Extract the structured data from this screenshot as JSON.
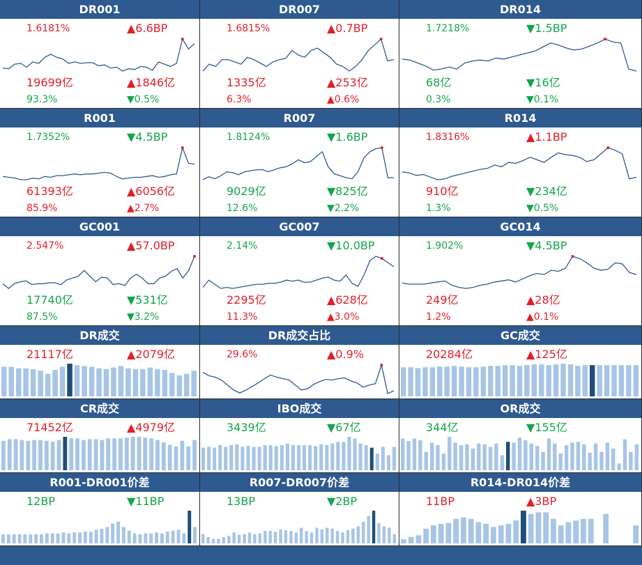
{
  "colors": {
    "header": "#2e5a8f",
    "up": "#e0202a",
    "down": "#12a64a",
    "line": "#2e5a8f",
    "bar": "#a7c5e6",
    "bar_highlight": "#1f4e79"
  },
  "cells": [
    {
      "title": "DR001",
      "type": "line",
      "top": {
        "l": {
          "text": "1.6181%",
          "dir": "up"
        },
        "r": {
          "text": "▲6.6BP",
          "dir": "up"
        }
      },
      "bottom": [
        {
          "l": {
            "text": "19699亿",
            "dir": "up"
          },
          "r": {
            "text": "▲1846亿",
            "dir": "up"
          }
        },
        {
          "l": {
            "text": "93.3%",
            "dir": "down"
          },
          "r": {
            "text": "▼0.5%",
            "dir": "down"
          }
        }
      ],
      "series": [
        10,
        9,
        15,
        16,
        11,
        18,
        16,
        24,
        28,
        24,
        22,
        16,
        18,
        16,
        17,
        17,
        13,
        14,
        10,
        11,
        6,
        9,
        8,
        12,
        11,
        7,
        18,
        15,
        12,
        16,
        48,
        35,
        42
      ],
      "marker": 30
    },
    {
      "title": "DR007",
      "type": "line",
      "top": {
        "l": {
          "text": "1.6815%",
          "dir": "up"
        },
        "r": {
          "text": "▲0.7BP",
          "dir": "up"
        }
      },
      "bottom": [
        {
          "l": {
            "text": "1335亿",
            "dir": "up"
          },
          "r": {
            "text": "▲253亿",
            "dir": "up"
          }
        },
        {
          "l": {
            "text": "6.3%",
            "dir": "up"
          },
          "r": {
            "text": "▲0.6%",
            "dir": "up"
          }
        }
      ],
      "series": [
        18,
        24,
        22,
        28,
        28,
        26,
        24,
        30,
        28,
        25,
        22,
        26,
        28,
        29,
        36,
        32,
        30,
        36,
        38,
        34,
        30,
        24,
        22,
        18,
        22,
        28,
        36,
        41,
        46,
        27,
        28
      ],
      "marker": 28
    },
    {
      "title": "DR014",
      "type": "line",
      "top": {
        "l": {
          "text": "1.7218%",
          "dir": "down"
        },
        "r": {
          "text": "▼1.5BP",
          "dir": "down"
        }
      },
      "bottom": [
        {
          "l": {
            "text": "68亿",
            "dir": "down"
          },
          "r": {
            "text": "▼16亿",
            "dir": "down"
          }
        },
        {
          "l": {
            "text": "0.3%",
            "dir": "down"
          },
          "r": {
            "text": "▼0.1%",
            "dir": "down"
          }
        }
      ],
      "series": [
        20,
        19,
        16,
        13,
        9,
        10,
        12,
        10,
        16,
        18,
        19,
        18,
        21,
        20,
        22,
        24,
        26,
        28,
        32,
        36,
        34,
        31,
        29,
        30,
        33,
        36,
        40,
        37,
        36,
        10,
        8
      ],
      "marker": 26
    },
    {
      "title": "R001",
      "type": "line",
      "top": {
        "l": {
          "text": "1.7352%",
          "dir": "down"
        },
        "r": {
          "text": "▼4.5BP",
          "dir": "down"
        }
      },
      "bottom": [
        {
          "l": {
            "text": "61393亿",
            "dir": "up"
          },
          "r": {
            "text": "▲6056亿",
            "dir": "up"
          }
        },
        {
          "l": {
            "text": "85.9%",
            "dir": "up"
          },
          "r": {
            "text": "▲2.7%",
            "dir": "up"
          }
        }
      ],
      "series": [
        10,
        9,
        8,
        6,
        6,
        8,
        7,
        10,
        9,
        11,
        11,
        12,
        13,
        12,
        13,
        13,
        14,
        15,
        14,
        10,
        7,
        8,
        9,
        9,
        10,
        11,
        9,
        10,
        12,
        13,
        45,
        26,
        25
      ],
      "marker": 30
    },
    {
      "title": "R007",
      "type": "line",
      "top": {
        "l": {
          "text": "1.8124%",
          "dir": "down"
        },
        "r": {
          "text": "▼1.6BP",
          "dir": "down"
        }
      },
      "bottom": [
        {
          "l": {
            "text": "9029亿",
            "dir": "down"
          },
          "r": {
            "text": "▼825亿",
            "dir": "down"
          }
        },
        {
          "l": {
            "text": "12.6%",
            "dir": "down"
          },
          "r": {
            "text": "▼2.2%",
            "dir": "down"
          }
        }
      ],
      "series": [
        12,
        15,
        13,
        16,
        20,
        19,
        17,
        20,
        21,
        22,
        22,
        20,
        22,
        24,
        25,
        28,
        32,
        29,
        30,
        35,
        40,
        25,
        18,
        16,
        14,
        13,
        20,
        34,
        40,
        43,
        44,
        14,
        14
      ],
      "marker": 30
    },
    {
      "title": "R014",
      "type": "line",
      "top": {
        "l": {
          "text": "1.8316%",
          "dir": "up"
        },
        "r": {
          "text": "▲1.1BP",
          "dir": "up"
        }
      },
      "bottom": [
        {
          "l": {
            "text": "910亿",
            "dir": "up"
          },
          "r": {
            "text": "▼234亿",
            "dir": "down"
          }
        },
        {
          "l": {
            "text": "1.3%",
            "dir": "down"
          },
          "r": {
            "text": "▼0.5%",
            "dir": "down"
          }
        }
      ],
      "series": [
        18,
        17,
        14,
        15,
        12,
        9,
        10,
        13,
        15,
        17,
        19,
        21,
        22,
        26,
        24,
        29,
        28,
        31,
        35,
        32,
        29,
        35,
        40,
        38,
        37,
        35,
        30,
        32,
        39,
        46,
        43,
        39,
        10,
        12
      ],
      "marker": 29
    },
    {
      "title": "GC001",
      "type": "line",
      "top": {
        "l": {
          "text": "2.547%",
          "dir": "up"
        },
        "r": {
          "text": "▲57.0BP",
          "dir": "up"
        }
      },
      "bottom": [
        {
          "l": {
            "text": "17740亿",
            "dir": "down"
          },
          "r": {
            "text": "▼531亿",
            "dir": "down"
          }
        },
        {
          "l": {
            "text": "87.5%",
            "dir": "down"
          },
          "r": {
            "text": "▼3.2%",
            "dir": "down"
          }
        }
      ],
      "series": [
        14,
        9,
        14,
        16,
        17,
        13,
        14,
        14,
        15,
        15,
        13,
        18,
        20,
        22,
        28,
        22,
        16,
        21,
        20,
        13,
        14,
        12,
        20,
        24,
        20,
        14,
        14,
        20,
        22,
        27,
        30,
        20,
        28,
        43
      ],
      "marker": 33
    },
    {
      "title": "GC007",
      "type": "line",
      "top": {
        "l": {
          "text": "2.14%",
          "dir": "down"
        },
        "r": {
          "text": "▼10.0BP",
          "dir": "down"
        }
      },
      "bottom": [
        {
          "l": {
            "text": "2295亿",
            "dir": "up"
          },
          "r": {
            "text": "▲628亿",
            "dir": "up"
          }
        },
        {
          "l": {
            "text": "11.3%",
            "dir": "up"
          },
          "r": {
            "text": "▲3.0%",
            "dir": "up"
          }
        }
      ],
      "series": [
        10,
        17,
        13,
        9,
        10,
        9,
        10,
        11,
        12,
        13,
        13,
        14,
        14,
        15,
        17,
        16,
        17,
        15,
        15,
        17,
        19,
        20,
        17,
        16,
        22,
        14,
        11,
        22,
        36,
        40,
        38,
        34,
        30
      ],
      "marker": 30
    },
    {
      "title": "GC014",
      "type": "line",
      "top": {
        "l": {
          "text": "1.902%",
          "dir": "down"
        },
        "r": {
          "text": "▼4.5BP",
          "dir": "down"
        }
      },
      "bottom": [
        {
          "l": {
            "text": "249亿",
            "dir": "up"
          },
          "r": {
            "text": "▲28亿",
            "dir": "up"
          }
        },
        {
          "l": {
            "text": "1.2%",
            "dir": "up"
          },
          "r": {
            "text": "▲0.1%",
            "dir": "up"
          }
        }
      ],
      "series": [
        15,
        14,
        14,
        14,
        15,
        16,
        17,
        13,
        11,
        10,
        11,
        13,
        14,
        16,
        17,
        18,
        16,
        19,
        22,
        24,
        23,
        27,
        26,
        29,
        40,
        38,
        34,
        29,
        27,
        28,
        34,
        33,
        25,
        23
      ],
      "marker": 24
    },
    {
      "title": "DR成交",
      "type": "bar",
      "top": {
        "l": {
          "text": "21117亿",
          "dir": "up"
        },
        "r": {
          "text": "▲2079亿",
          "dir": "up"
        }
      },
      "bars": [
        38,
        38,
        36,
        36,
        35,
        33,
        29,
        34,
        38,
        42,
        40,
        39,
        38,
        36,
        35,
        37,
        39,
        36,
        35,
        35,
        37,
        35,
        34,
        30,
        27,
        29,
        33
      ],
      "hl": 9
    },
    {
      "title": "DR成交占比",
      "type": "line",
      "top": {
        "l": {
          "text": "29.6%",
          "dir": "up"
        },
        "r": {
          "text": "▲0.9%",
          "dir": "up"
        }
      },
      "series": [
        33,
        28,
        26,
        22,
        15,
        8,
        4,
        8,
        13,
        18,
        24,
        29,
        26,
        24,
        22,
        15,
        8,
        10,
        16,
        20,
        23,
        22,
        24,
        25,
        21,
        18,
        12,
        15,
        17,
        43,
        3,
        7
      ],
      "marker": 29
    },
    {
      "title": "GC成交",
      "type": "bar",
      "top": {
        "l": {
          "text": "20284亿",
          "dir": "up"
        },
        "r": {
          "text": "▲125亿",
          "dir": "up"
        }
      },
      "bars": [
        40,
        40,
        39,
        40,
        40,
        41,
        41,
        42,
        41,
        40,
        40,
        41,
        42,
        42,
        43,
        43,
        42,
        43,
        44,
        44,
        43,
        44,
        45,
        44,
        42,
        43,
        43,
        43,
        43,
        43,
        43,
        43,
        43
      ],
      "hl": 26
    },
    {
      "title": "CR成交",
      "type": "bar",
      "top": {
        "l": {
          "text": "71452亿",
          "dir": "up"
        },
        "r": {
          "text": "▲4979亿",
          "dir": "up"
        }
      },
      "bars": [
        37,
        39,
        39,
        38,
        37,
        38,
        38,
        37,
        36,
        38,
        42,
        40,
        40,
        38,
        39,
        39,
        38,
        40,
        40,
        40,
        41,
        42,
        42,
        41,
        40,
        38,
        35,
        32,
        30,
        37,
        30,
        38
      ],
      "hl": 10
    },
    {
      "title": "IBO成交",
      "type": "bar",
      "top": {
        "l": {
          "text": "3439亿",
          "dir": "down"
        },
        "r": {
          "text": "▼67亿",
          "dir": "down"
        }
      },
      "bars": [
        27,
        28,
        27,
        30,
        28,
        30,
        31,
        28,
        29,
        28,
        28,
        30,
        30,
        29,
        30,
        32,
        30,
        30,
        30,
        30,
        29,
        31,
        30,
        32,
        34,
        34,
        40,
        38,
        32,
        30,
        27,
        20,
        28,
        18,
        28
      ],
      "hl": 30
    },
    {
      "title": "OR成交",
      "type": "bar",
      "top": {
        "l": {
          "text": "344亿",
          "dir": "down"
        },
        "r": {
          "text": "▼155亿",
          "dir": "down"
        }
      },
      "bars": [
        38,
        35,
        38,
        36,
        22,
        33,
        30,
        20,
        40,
        33,
        30,
        31,
        26,
        32,
        31,
        28,
        32,
        18,
        34,
        33,
        39,
        36,
        32,
        29,
        22,
        38,
        32,
        20,
        30,
        33,
        34,
        31,
        21,
        32,
        22,
        33,
        26,
        8,
        37,
        22,
        31
      ],
      "hl": 18
    },
    {
      "title": "R001-DR001价差",
      "type": "bar",
      "top": {
        "l": {
          "text": "12BP",
          "dir": "down"
        },
        "r": {
          "text": "▼11BP",
          "dir": "down"
        }
      },
      "bars": [
        10,
        10,
        10,
        10,
        10,
        10,
        10,
        10,
        11,
        11,
        11,
        12,
        11,
        12,
        12,
        13,
        13,
        15,
        16,
        18,
        22,
        24,
        18,
        14,
        11,
        10,
        11,
        11,
        12,
        11,
        13,
        14,
        15,
        11,
        36,
        18
      ],
      "hl": 34
    },
    {
      "title": "R007-DR007价差",
      "type": "bar",
      "top": {
        "l": {
          "text": "13BP",
          "dir": "down"
        },
        "r": {
          "text": "▼2BP",
          "dir": "down"
        }
      },
      "bars": [
        12,
        8,
        6,
        6,
        8,
        10,
        14,
        11,
        12,
        14,
        12,
        13,
        16,
        16,
        15,
        18,
        17,
        16,
        14,
        20,
        16,
        14,
        20,
        18,
        20,
        19,
        16,
        14,
        17,
        19,
        22,
        28,
        35,
        42,
        26,
        22,
        20,
        12
      ],
      "hl": 33
    },
    {
      "title": "R014-DR014价差",
      "type": "bar",
      "top": {
        "l": {
          "text": "11BP",
          "dir": "up"
        },
        "r": {
          "text": "▲3BP",
          "dir": "up"
        }
      },
      "bars": [
        5,
        8,
        10,
        18,
        22,
        24,
        25,
        30,
        32,
        30,
        26,
        24,
        20,
        22,
        24,
        28,
        40,
        36,
        38,
        38,
        30,
        22,
        26,
        28,
        30,
        30,
        0,
        36,
        0,
        0,
        0,
        22
      ],
      "hl": 16
    }
  ]
}
